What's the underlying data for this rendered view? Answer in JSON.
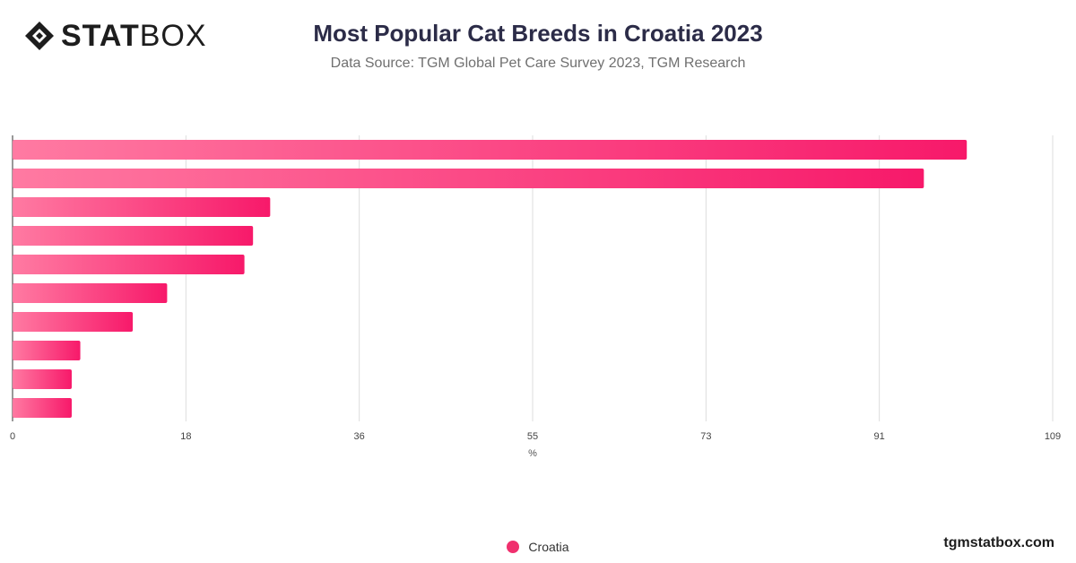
{
  "logo": {
    "text_bold": "STAT",
    "text_light": "BOX"
  },
  "title": "Most Popular Cat Breeds in Croatia 2023",
  "subtitle": "Data Source: TGM Global Pet Care Survey 2023, TGM Research",
  "footer": {
    "brand": "tgmstatbox.com"
  },
  "colors": {
    "bar_start": "#ff7aa2",
    "bar_end": "#f7196a",
    "legend": "#f0306e"
  },
  "chart_data": {
    "type": "bar",
    "orientation": "horizontal",
    "title": "Most Popular Cat Breeds in Croatia 2023",
    "xlabel": "%",
    "ylabel": "",
    "xlim": [
      0,
      109
    ],
    "xticks": [
      "0",
      "18",
      "36",
      "55",
      "73",
      "91",
      "109"
    ],
    "grid": true,
    "legend_position": "bottom",
    "categories": [
      "",
      "",
      "",
      "",
      "",
      "",
      "",
      "",
      "",
      ""
    ],
    "series": [
      {
        "name": "Croatia",
        "values": [
          100,
          95.5,
          27,
          25.2,
          24.3,
          16.2,
          12.6,
          7.1,
          6.2,
          6.2
        ]
      }
    ]
  }
}
